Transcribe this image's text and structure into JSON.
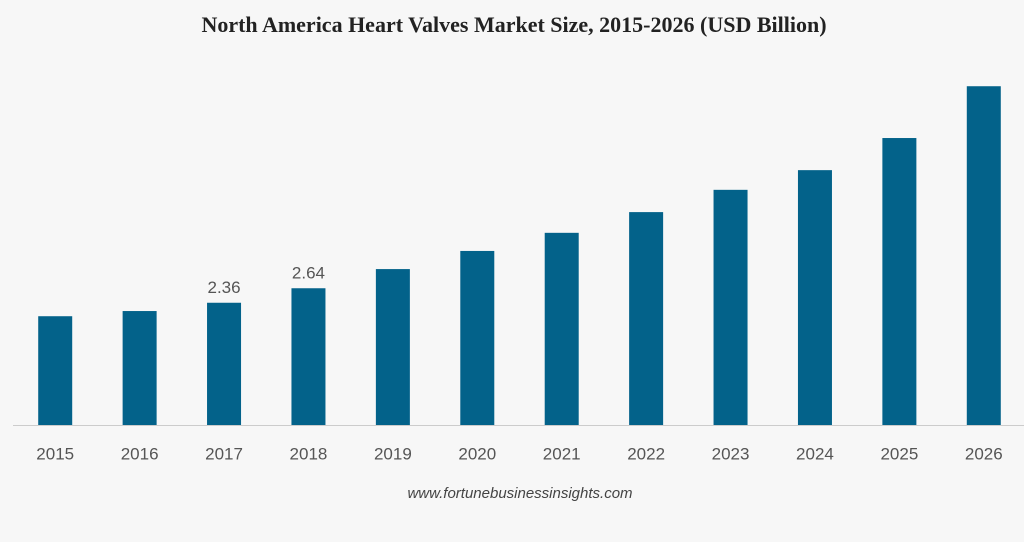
{
  "chart_data": {
    "type": "bar",
    "title": "North America Heart Valves Market Size, 2015-2026 (USD Billion)",
    "categories": [
      "2015",
      "2016",
      "2017",
      "2018",
      "2019",
      "2020",
      "2021",
      "2022",
      "2023",
      "2024",
      "2025",
      "2026"
    ],
    "values": [
      2.1,
      2.2,
      2.36,
      2.64,
      3.01,
      3.36,
      3.71,
      4.11,
      4.54,
      4.92,
      5.54,
      6.54
    ],
    "value_labels": [
      null,
      null,
      "2.36",
      "2.64",
      null,
      null,
      null,
      null,
      null,
      null,
      null,
      null
    ],
    "color": "#03628a",
    "source": "www.fortunebusinessinsights.com"
  }
}
